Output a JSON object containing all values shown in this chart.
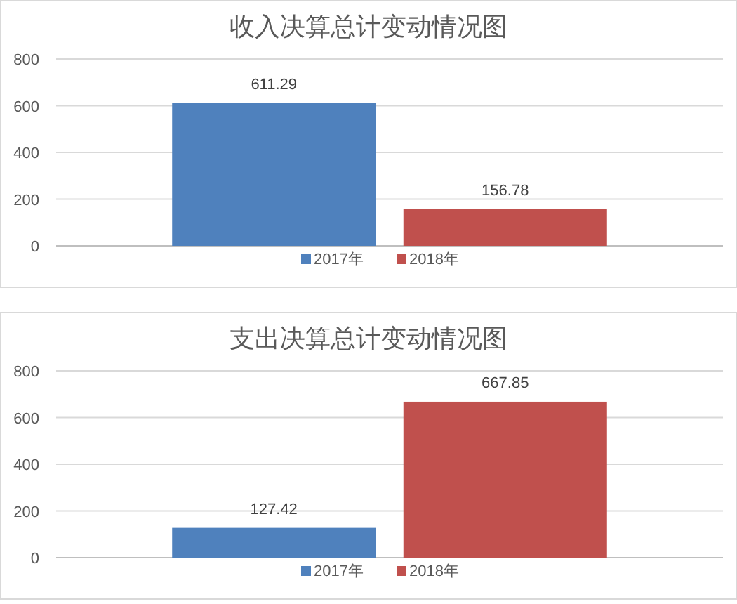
{
  "chart_data": [
    {
      "type": "bar",
      "title": "收入决算总计变动情况图",
      "categories": [
        null
      ],
      "series": [
        {
          "name": "2017年",
          "color": "#4f81bd",
          "values": [
            611.29
          ]
        },
        {
          "name": "2018年",
          "color": "#c0504d",
          "values": [
            156.78
          ]
        }
      ],
      "ylim": [
        0,
        800
      ],
      "yticks": [
        0,
        200,
        400,
        600,
        800
      ],
      "grid": "y",
      "legend": "bottom",
      "data_labels": true
    },
    {
      "type": "bar",
      "title": "支出决算总计变动情况图",
      "categories": [
        null
      ],
      "series": [
        {
          "name": "2017年",
          "color": "#4f81bd",
          "values": [
            127.42
          ]
        },
        {
          "name": "2018年",
          "color": "#c0504d",
          "values": [
            667.85
          ]
        }
      ],
      "ylim": [
        0,
        800
      ],
      "yticks": [
        0,
        200,
        400,
        600,
        800
      ],
      "grid": "y",
      "legend": "bottom",
      "data_labels": true
    }
  ]
}
